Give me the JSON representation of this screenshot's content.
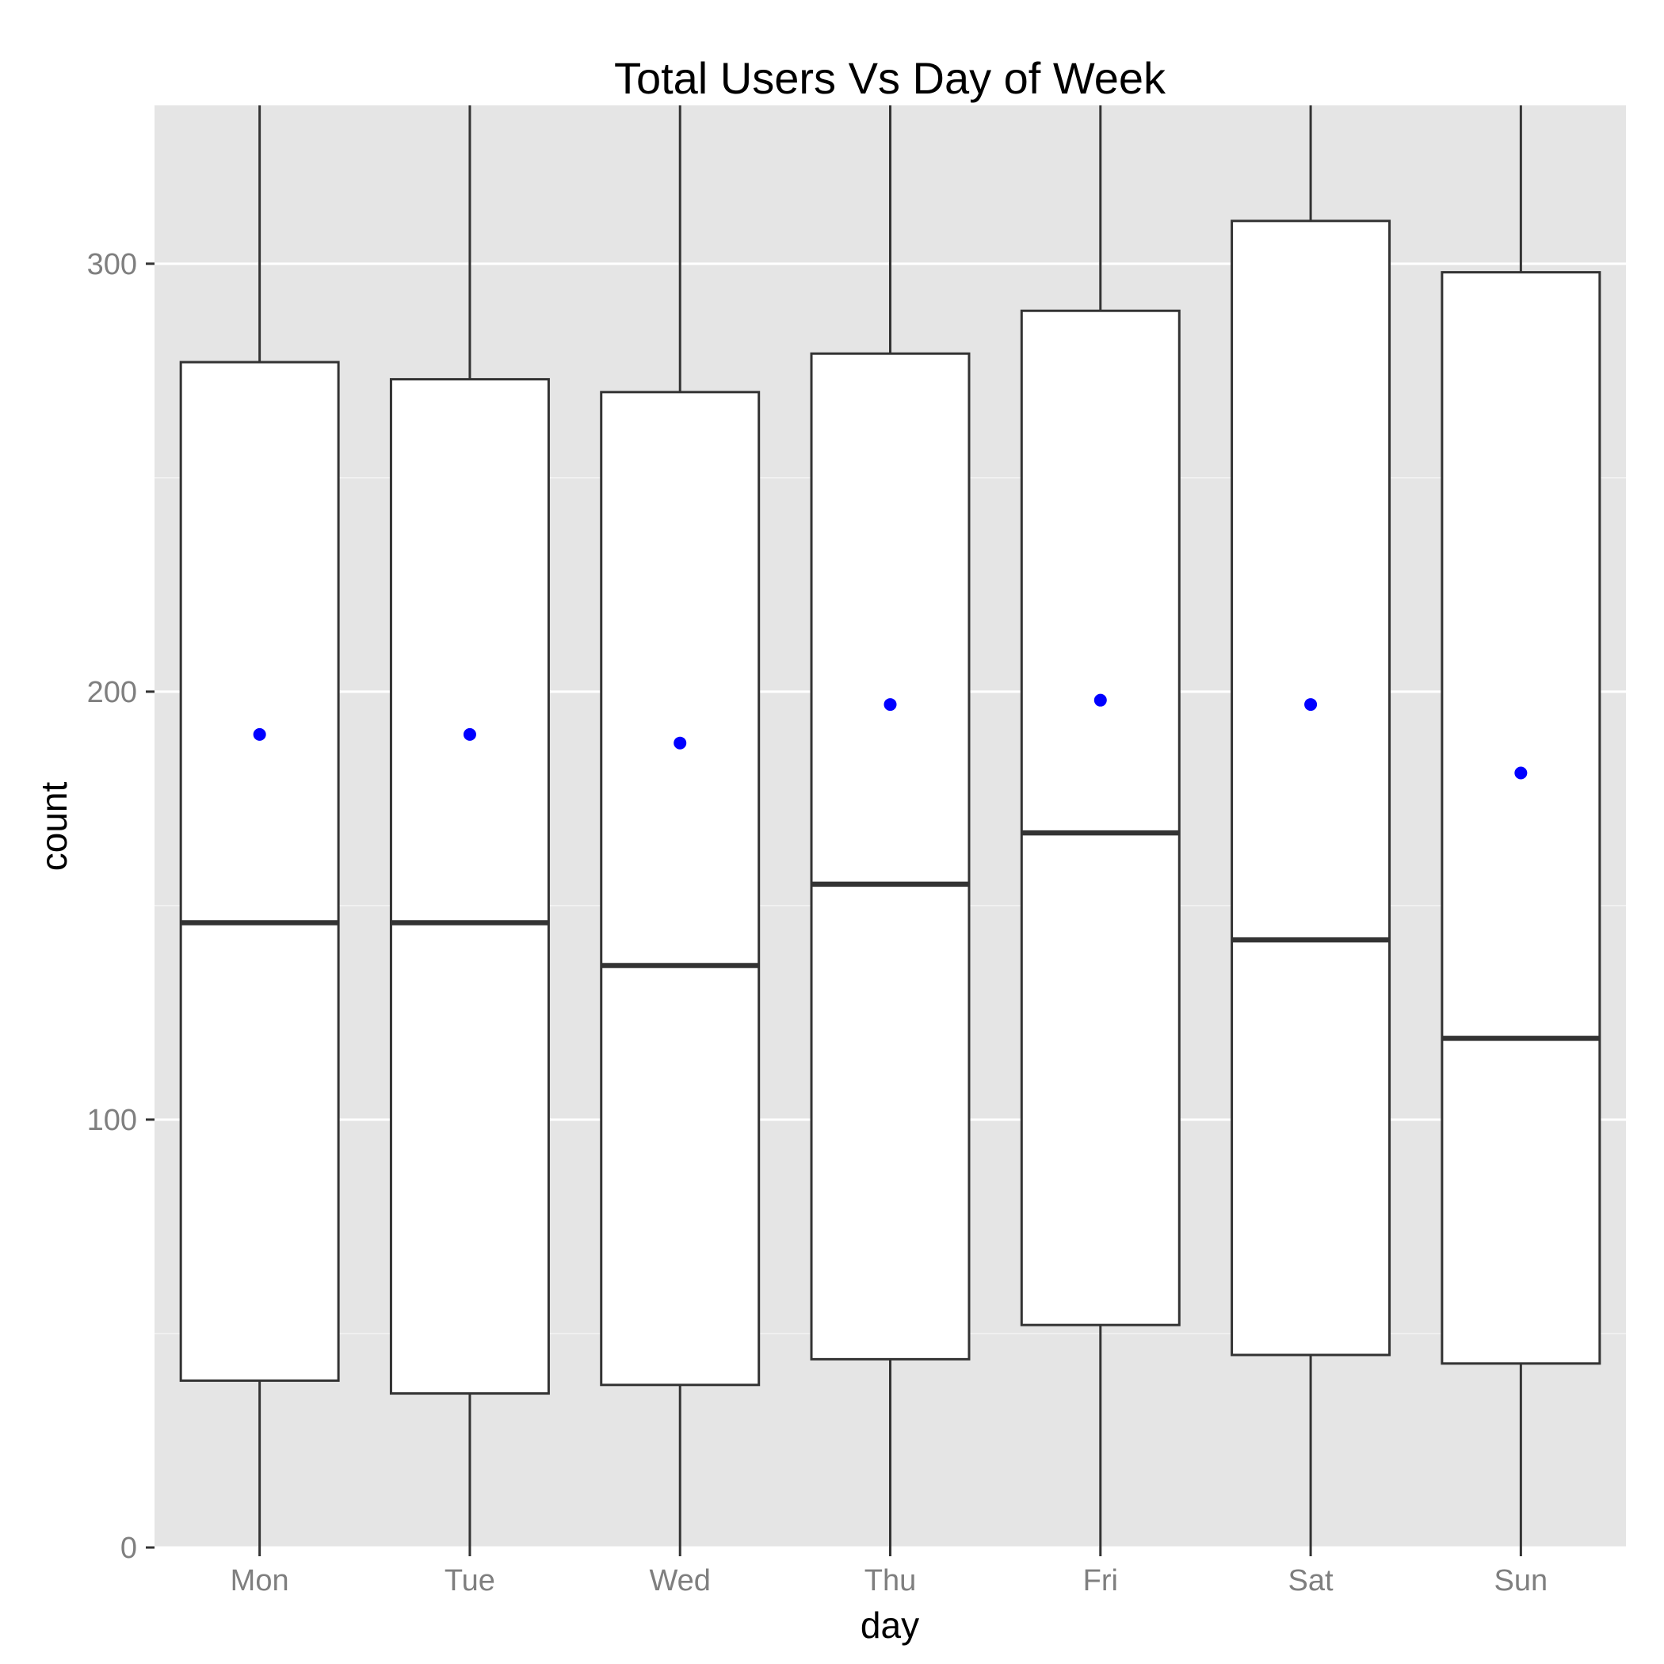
{
  "chart_data": {
    "type": "box",
    "title": "Total Users Vs Day of Week",
    "xlabel": "day",
    "ylabel": "count",
    "ylim": [
      0,
      337
    ],
    "yticks": [
      0,
      100,
      200,
      300
    ],
    "categories": [
      "Mon",
      "Tue",
      "Wed",
      "Thu",
      "Fri",
      "Sat",
      "Sun"
    ],
    "boxes": [
      {
        "label": "Mon",
        "whisker_low": 0,
        "q1": 39,
        "median": 146,
        "q3": 277,
        "whisker_high": 337,
        "mean": 190
      },
      {
        "label": "Tue",
        "whisker_low": 0,
        "q1": 36,
        "median": 146,
        "q3": 273,
        "whisker_high": 337,
        "mean": 190
      },
      {
        "label": "Wed",
        "whisker_low": 0,
        "q1": 38,
        "median": 136,
        "q3": 270,
        "whisker_high": 337,
        "mean": 188
      },
      {
        "label": "Thu",
        "whisker_low": 0,
        "q1": 44,
        "median": 155,
        "q3": 279,
        "whisker_high": 337,
        "mean": 197
      },
      {
        "label": "Fri",
        "whisker_low": 0,
        "q1": 52,
        "median": 167,
        "q3": 289,
        "whisker_high": 337,
        "mean": 198
      },
      {
        "label": "Sat",
        "whisker_low": 0,
        "q1": 45,
        "median": 142,
        "q3": 310,
        "whisker_high": 337,
        "mean": 197
      },
      {
        "label": "Sun",
        "whisker_low": 0,
        "q1": 43,
        "median": 119,
        "q3": 298,
        "whisker_high": 337,
        "mean": 181
      }
    ],
    "grid": true,
    "legend": "none",
    "colors": {
      "panel_background": "#e5e5e5",
      "grid": "#ffffff",
      "box_fill": "#ffffff",
      "box_outline": "#333333",
      "mean_point": "#0000ff",
      "tick_text": "#7f7f7f"
    }
  }
}
